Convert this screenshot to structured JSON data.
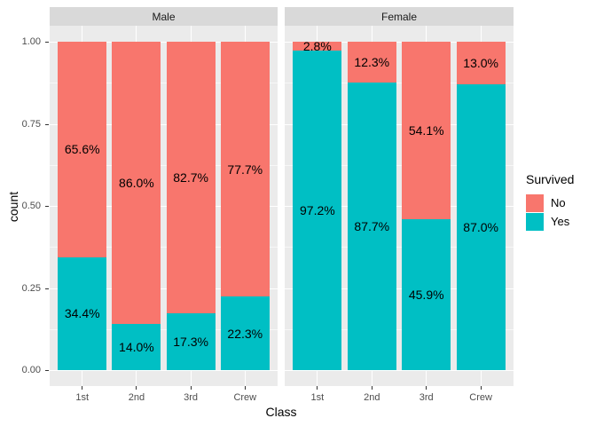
{
  "chart_data": {
    "type": "bar",
    "variant": "stacked-fill-faceted",
    "title": "",
    "xlabel": "Class",
    "ylabel": "count",
    "ylim": [
      0,
      1
    ],
    "grid": true,
    "categories": [
      "1st",
      "2nd",
      "3rd",
      "Crew"
    ],
    "y_ticks": [
      {
        "value": 1.0,
        "label": "1.00"
      },
      {
        "value": 0.75,
        "label": "0.75"
      },
      {
        "value": 0.5,
        "label": "0.50"
      },
      {
        "value": 0.25,
        "label": "0.25"
      },
      {
        "value": 0.0,
        "label": "0.00"
      }
    ],
    "y_minor_ticks": [
      0.125,
      0.375,
      0.625,
      0.875
    ],
    "legend": {
      "title": "Survived",
      "position": "right",
      "entries": [
        {
          "label": "No",
          "color": "#F8766D"
        },
        {
          "label": "Yes",
          "color": "#00BFC4"
        }
      ]
    },
    "facets": [
      {
        "label": "Male",
        "bars": [
          {
            "category": "1st",
            "segments": [
              {
                "series": "Yes",
                "fraction": 0.344,
                "label": "34.4%"
              },
              {
                "series": "No",
                "fraction": 0.656,
                "label": "65.6%"
              }
            ]
          },
          {
            "category": "2nd",
            "segments": [
              {
                "series": "Yes",
                "fraction": 0.14,
                "label": "14.0%"
              },
              {
                "series": "No",
                "fraction": 0.86,
                "label": "86.0%"
              }
            ]
          },
          {
            "category": "3rd",
            "segments": [
              {
                "series": "Yes",
                "fraction": 0.173,
                "label": "17.3%"
              },
              {
                "series": "No",
                "fraction": 0.827,
                "label": "82.7%"
              }
            ]
          },
          {
            "category": "Crew",
            "segments": [
              {
                "series": "Yes",
                "fraction": 0.223,
                "label": "22.3%"
              },
              {
                "series": "No",
                "fraction": 0.777,
                "label": "77.7%"
              }
            ]
          }
        ]
      },
      {
        "label": "Female",
        "bars": [
          {
            "category": "1st",
            "segments": [
              {
                "series": "Yes",
                "fraction": 0.972,
                "label": "97.2%"
              },
              {
                "series": "No",
                "fraction": 0.028,
                "label": "2.8%"
              }
            ]
          },
          {
            "category": "2nd",
            "segments": [
              {
                "series": "Yes",
                "fraction": 0.877,
                "label": "87.7%"
              },
              {
                "series": "No",
                "fraction": 0.123,
                "label": "12.3%"
              }
            ]
          },
          {
            "category": "3rd",
            "segments": [
              {
                "series": "Yes",
                "fraction": 0.459,
                "label": "45.9%"
              },
              {
                "series": "No",
                "fraction": 0.541,
                "label": "54.1%"
              }
            ]
          },
          {
            "category": "Crew",
            "segments": [
              {
                "series": "Yes",
                "fraction": 0.87,
                "label": "87.0%"
              },
              {
                "series": "No",
                "fraction": 0.13,
                "label": "13.0%"
              }
            ]
          }
        ]
      }
    ],
    "colors": {
      "panel_background": "#EBEBEB",
      "strip_background": "#D9D9D9",
      "grid": "#FFFFFF",
      "axis_text": "#4D4D4D",
      "bar_label_text": "#000000"
    }
  }
}
